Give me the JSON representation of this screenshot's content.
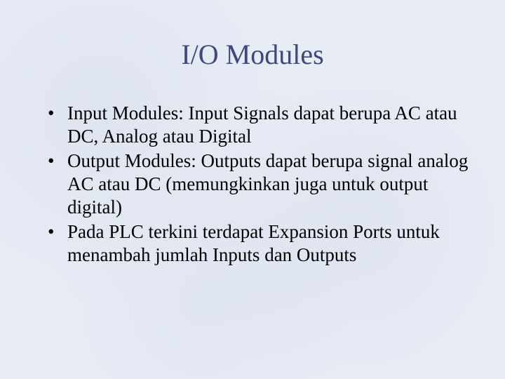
{
  "slide": {
    "title": "I/O Modules",
    "title_color": "#42467f",
    "title_fontsize": 40,
    "body_fontsize": 27,
    "body_color": "#000000",
    "background_color": "#e8ecf5",
    "bullets": [
      "Input Modules:  Input Signals dapat berupa AC atau DC, Analog atau Digital",
      "Output Modules: Outputs dapat berupa signal analog AC atau DC (memungkinkan juga untuk output digital)",
      "Pada PLC terkini terdapat Expansion Ports untuk menambah jumlah Inputs dan Outputs"
    ]
  }
}
